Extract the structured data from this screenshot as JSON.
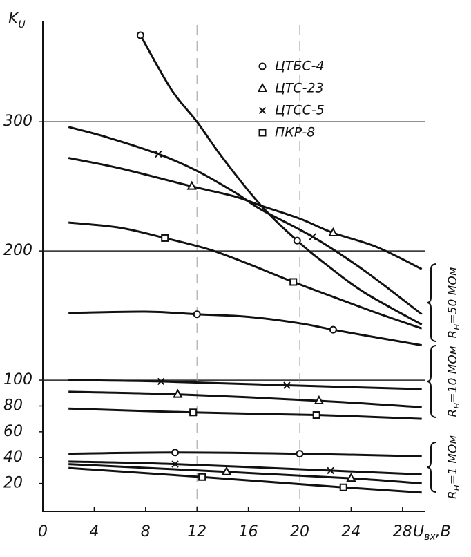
{
  "chart_data": {
    "type": "line",
    "ylabel": {
      "main": "K",
      "sub": "U"
    },
    "xlabel": {
      "main": "U",
      "sub": "вх",
      "rest": ",В"
    },
    "xlim": [
      0,
      30
    ],
    "ylim": [
      0,
      375
    ],
    "xticks": [
      0,
      4,
      8,
      12,
      16,
      20,
      24,
      28
    ],
    "yticks": [
      20,
      40,
      60,
      80,
      100,
      200,
      300
    ],
    "ygrid": [
      100,
      200,
      300
    ],
    "xgrid": [
      12,
      20
    ],
    "legend": [
      {
        "label": "ЦТБС-4",
        "marker": "circle"
      },
      {
        "label": "ЦТС-23",
        "marker": "triangle"
      },
      {
        "label": "ЦТСС-5",
        "marker": "cross"
      },
      {
        "label": "ПКР-8",
        "marker": "square"
      }
    ],
    "annotations": [
      {
        "main": "R",
        "sub": "н",
        "rest": "=50 МОм"
      },
      {
        "main": "R",
        "sub": "н",
        "rest": "=10 МОм"
      },
      {
        "main": "R",
        "sub": "н",
        "rest": "=1 МОм"
      }
    ],
    "series": [
      {
        "marker": "circle",
        "x": [
          7.6,
          10,
          12,
          14,
          17,
          19.8,
          22,
          25,
          29.5
        ],
        "values": [
          367,
          325,
          300,
          272,
          235,
          208,
          190,
          168,
          143
        ],
        "marks": {
          "x": [
            7.6,
            19.8
          ],
          "values": [
            367,
            208
          ]
        }
      },
      {
        "marker": "cross",
        "x": [
          2,
          5,
          9,
          12,
          15,
          17,
          21,
          25,
          29.5
        ],
        "values": [
          296,
          288,
          275,
          262,
          245,
          232,
          211,
          185,
          151
        ],
        "marks": {
          "x": [
            9,
            21
          ],
          "values": [
            275,
            211
          ]
        }
      },
      {
        "marker": "triangle",
        "x": [
          2,
          6,
          11.6,
          15,
          17,
          20,
          22.6,
          26,
          29.5
        ],
        "values": [
          272,
          264,
          250,
          242,
          235,
          225,
          214,
          203,
          186
        ],
        "marks": {
          "x": [
            11.6,
            22.6
          ],
          "values": [
            250,
            214
          ]
        }
      },
      {
        "marker": "square",
        "x": [
          2,
          6,
          9.5,
          13,
          16,
          19.5,
          23,
          26,
          29.5
        ],
        "values": [
          222,
          218,
          210,
          201,
          190,
          176,
          163,
          152,
          140
        ],
        "marks": {
          "x": [
            9.5,
            19.5
          ],
          "values": [
            210,
            176
          ]
        }
      },
      {
        "marker": "circle",
        "x": [
          2,
          8,
          12,
          16,
          20,
          22.6,
          26,
          29.5
        ],
        "values": [
          152,
          153,
          151,
          149,
          144,
          139,
          133,
          127
        ],
        "marks": {
          "x": [
            12,
            22.6
          ],
          "values": [
            151,
            139
          ]
        }
      },
      {
        "marker": "cross",
        "x": [
          2,
          9.2,
          19,
          29.5
        ],
        "values": [
          100,
          99,
          96,
          93
        ],
        "marks": {
          "x": [
            9.2,
            19
          ],
          "values": [
            99,
            96
          ]
        }
      },
      {
        "marker": "triangle",
        "x": [
          2,
          10.5,
          21.5,
          29.5
        ],
        "values": [
          91,
          89,
          84,
          79
        ],
        "marks": {
          "x": [
            10.5,
            21.5
          ],
          "values": [
            89,
            84
          ]
        }
      },
      {
        "marker": "square",
        "x": [
          2,
          11.7,
          21.3,
          29.5
        ],
        "values": [
          78,
          75,
          73,
          70
        ],
        "marks": {
          "x": [
            11.7,
            21.3
          ],
          "values": [
            75,
            73
          ]
        }
      },
      {
        "marker": "circle",
        "x": [
          2,
          10.3,
          20,
          29.5
        ],
        "values": [
          43,
          44,
          43,
          41
        ],
        "marks": {
          "x": [
            10.3,
            20
          ],
          "values": [
            44,
            43
          ]
        }
      },
      {
        "marker": "cross",
        "x": [
          2,
          10.3,
          22.4,
          29.5
        ],
        "values": [
          37,
          35,
          30,
          27
        ],
        "marks": {
          "x": [
            10.3,
            22.4
          ],
          "values": [
            35,
            30
          ]
        }
      },
      {
        "marker": "triangle",
        "x": [
          2,
          14.3,
          24,
          29.5
        ],
        "values": [
          35,
          29,
          24,
          20
        ],
        "marks": {
          "x": [
            14.3,
            24
          ],
          "values": [
            29,
            24
          ]
        }
      },
      {
        "marker": "square",
        "x": [
          2,
          12.4,
          23.4,
          29.5
        ],
        "values": [
          32,
          25,
          17,
          13
        ],
        "marks": {
          "x": [
            12.4,
            23.4
          ],
          "values": [
            25,
            17
          ]
        }
      }
    ]
  }
}
